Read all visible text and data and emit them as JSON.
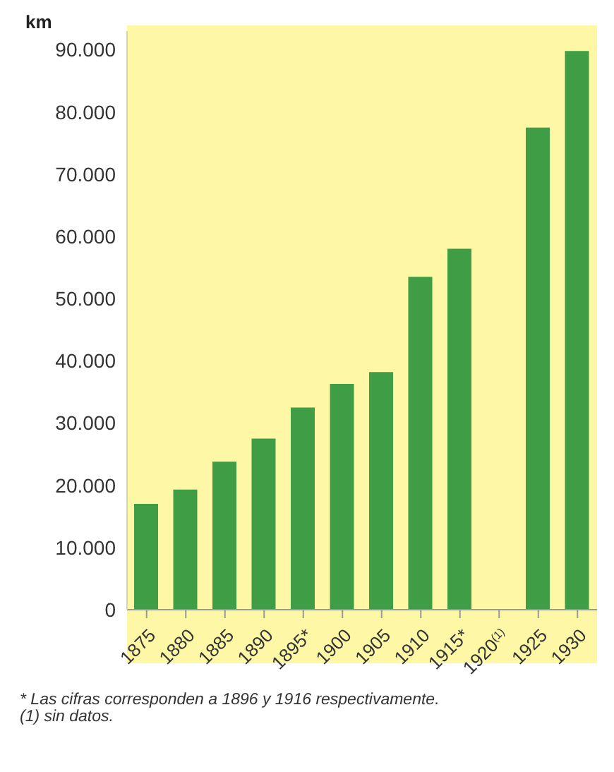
{
  "chart_data": {
    "type": "bar",
    "ylabel": "km",
    "categories": [
      "1875",
      "1880",
      "1885",
      "1890",
      "1895*",
      "1900",
      "1905",
      "1910",
      "1915*",
      "1920$^{(1)}$",
      "1925",
      "1930"
    ],
    "values": [
      17000,
      19300,
      23800,
      27500,
      32500,
      36300,
      38200,
      53500,
      58000,
      null,
      77500,
      89800
    ],
    "color": "#3f9d45",
    "ylim": [
      0,
      93000
    ],
    "yticks": [
      {
        "value": 0,
        "label": "0"
      },
      {
        "value": 10000,
        "label": "10.000"
      },
      {
        "value": 20000,
        "label": "20.000"
      },
      {
        "value": 30000,
        "label": "30.000"
      },
      {
        "value": 40000,
        "label": "40.000"
      },
      {
        "value": 50000,
        "label": "50.000"
      },
      {
        "value": 60000,
        "label": "60.000"
      },
      {
        "value": 70000,
        "label": "70.000"
      },
      {
        "value": 80000,
        "label": "80.000"
      },
      {
        "value": 90000,
        "label": "90.000"
      }
    ],
    "annotations": [
      "* Las cifras corresponden a 1896 y 1916 respectivamente.",
      "(1) sin datos."
    ]
  }
}
